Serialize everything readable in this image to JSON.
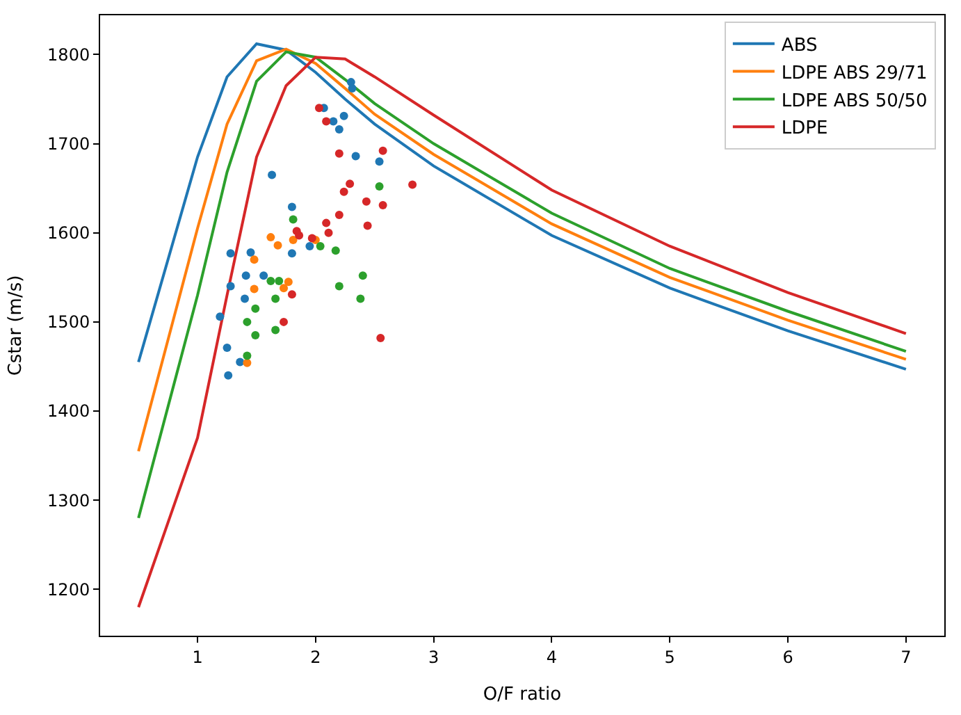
{
  "chart_data": {
    "type": "line",
    "xlabel": "O/F ratio",
    "ylabel": "Cstar (m/s)",
    "xlim": [
      0.175,
      7.325
    ],
    "xticks": [
      1,
      2,
      3,
      4,
      5,
      6,
      7
    ],
    "ylim": [
      1148,
      1844
    ],
    "yticks": [
      1200,
      1300,
      1400,
      1500,
      1600,
      1700,
      1800
    ],
    "legend": "top right",
    "series": [
      {
        "name": "ABS",
        "type": "line",
        "color": "#1f77b4",
        "x": [
          0.5,
          1,
          1.25,
          1.5,
          1.75,
          2,
          2.25,
          2.5,
          3,
          4,
          5,
          6,
          7
        ],
        "values": [
          1455,
          1685,
          1775,
          1812,
          1805,
          1780,
          1750,
          1722,
          1675,
          1597,
          1538,
          1490,
          1447
        ]
      },
      {
        "name": "LDPE ABS 29/71",
        "type": "line",
        "color": "#ff7f0e",
        "x": [
          0.5,
          1,
          1.25,
          1.5,
          1.75,
          2,
          2.25,
          2.5,
          3,
          4,
          5,
          6,
          7
        ],
        "values": [
          1355,
          1605,
          1722,
          1793,
          1806,
          1790,
          1762,
          1733,
          1688,
          1610,
          1550,
          1502,
          1458
        ]
      },
      {
        "name": "LDPE ABS 50/50",
        "type": "line",
        "color": "#2ca02c",
        "x": [
          0.5,
          1,
          1.25,
          1.5,
          1.75,
          2,
          2.25,
          2.5,
          3,
          4,
          5,
          6,
          7
        ],
        "values": [
          1280,
          1530,
          1668,
          1770,
          1803,
          1797,
          1772,
          1745,
          1700,
          1622,
          1560,
          1512,
          1467
        ]
      },
      {
        "name": "LDPE",
        "type": "line",
        "color": "#d62728",
        "x": [
          0.5,
          1,
          1.25,
          1.5,
          1.75,
          2,
          2.25,
          2.5,
          3,
          4,
          5,
          6,
          7
        ],
        "values": [
          1180,
          1370,
          1530,
          1685,
          1765,
          1797,
          1795,
          1775,
          1732,
          1648,
          1585,
          1533,
          1487
        ]
      },
      {
        "type": "scatter",
        "marker": "circle",
        "color": "#1f77b4",
        "x": [
          2.3,
          2.31,
          2.07,
          2.15,
          2.24,
          2.2,
          2.34,
          2.54,
          1.63,
          1.8,
          1.95,
          1.8,
          1.28,
          1.45,
          1.41,
          1.56,
          1.28,
          1.4,
          1.19,
          1.25,
          1.36,
          1.26
        ],
        "values": [
          1769,
          1762,
          1740,
          1725,
          1731,
          1716,
          1686,
          1680,
          1665,
          1629,
          1585,
          1577,
          1577,
          1578,
          1552,
          1552,
          1540,
          1526,
          1506,
          1471,
          1455,
          1440
        ]
      },
      {
        "type": "scatter",
        "marker": "circle",
        "color": "#ff7f0e",
        "x": [
          1.62,
          1.68,
          1.81,
          2.0,
          1.48,
          1.77,
          1.48,
          1.73,
          1.42
        ],
        "values": [
          1595,
          1586,
          1592,
          1592,
          1570,
          1545,
          1537,
          1538,
          1454
        ]
      },
      {
        "type": "scatter",
        "marker": "circle",
        "color": "#2ca02c",
        "x": [
          2.54,
          1.81,
          2.04,
          2.17,
          1.62,
          1.69,
          2.4,
          2.2,
          1.66,
          2.38,
          1.49,
          1.42,
          1.49,
          1.66,
          1.42
        ],
        "values": [
          1652,
          1615,
          1585,
          1580,
          1546,
          1546,
          1552,
          1540,
          1526,
          1526,
          1515,
          1500,
          1485,
          1491,
          1462
        ]
      },
      {
        "type": "scatter",
        "marker": "circle",
        "color": "#d62728",
        "x": [
          2.03,
          2.09,
          2.2,
          2.57,
          2.29,
          2.24,
          2.82,
          2.43,
          2.57,
          2.2,
          2.09,
          2.11,
          2.44,
          1.84,
          1.86,
          1.97,
          1.8,
          1.73,
          2.55
        ],
        "values": [
          1740,
          1725,
          1689,
          1692,
          1655,
          1646,
          1654,
          1635,
          1631,
          1620,
          1611,
          1600,
          1608,
          1602,
          1597,
          1594,
          1531,
          1500,
          1482
        ]
      }
    ]
  }
}
